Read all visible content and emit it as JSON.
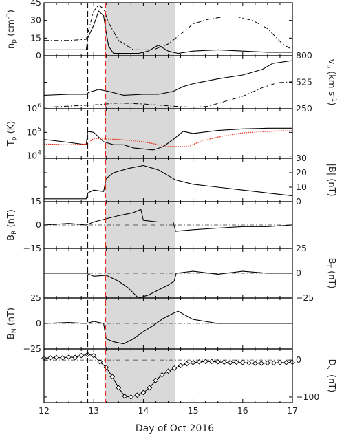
{
  "chart_data": {
    "type": "line",
    "x_axis": {
      "label": "Day of Oct 2016",
      "range": [
        12,
        17
      ],
      "ticks": [
        "12",
        "13",
        "14",
        "15",
        "16",
        "17"
      ]
    },
    "markers": {
      "shock_day": 12.88,
      "cme_start_day": 13.24
    },
    "shaded_interval": [
      13.24,
      14.64
    ],
    "panels": [
      {
        "id": "np",
        "label_left": "n",
        "label_left_sub": "p",
        "label_left_unit": " (cm",
        "label_left_sup": "-3",
        "label_left_end": ")",
        "label_right": "",
        "ylim": [
          0,
          45
        ],
        "yticks_left": [
          "45",
          "30",
          "15",
          "0"
        ],
        "yticks_right": [],
        "series": [
          {
            "style": "solid",
            "x": [
              12.0,
              12.5,
              12.85,
              12.88,
              13.0,
              13.1,
              13.2,
              13.25,
              13.3,
              13.4,
              13.6,
              13.9,
              14.1,
              14.3,
              14.5,
              14.7,
              15.0,
              15.5,
              16.0,
              16.5,
              17.0
            ],
            "y": [
              5,
              5,
              5,
              15,
              26,
              38,
              34,
              20,
              8,
              2,
              2,
              2,
              4,
              9,
              4,
              2,
              4,
              5,
              4,
              3,
              3
            ]
          },
          {
            "style": "dashdot",
            "x": [
              12.0,
              12.5,
              12.85,
              13.0,
              13.1,
              13.2,
              13.3,
              13.5,
              13.8,
              14.2,
              14.5,
              14.8,
              15.0,
              15.3,
              15.6,
              15.9,
              16.2,
              16.5,
              16.8,
              17.0
            ],
            "y": [
              13,
              13,
              14,
              38,
              43,
              40,
              28,
              13,
              5,
              5,
              10,
              20,
              27,
              31,
              33,
              33,
              30,
              23,
              10,
              5
            ]
          }
        ]
      },
      {
        "id": "vp",
        "label_left": "",
        "label_right": "v",
        "label_right_sub": "p",
        "label_right_unit": " (km s",
        "label_right_sup": "-1",
        "label_right_end": ")",
        "ylim": [
          250,
          800
        ],
        "yticks_left": [],
        "yticks_right": [
          "800",
          "525",
          "250"
        ],
        "series": [
          {
            "style": "solid",
            "x": [
              12.0,
              12.5,
              12.85,
              12.9,
              13.1,
              13.3,
              13.6,
              14.0,
              14.3,
              14.6,
              14.8,
              15.0,
              15.5,
              16.0,
              16.4,
              16.6,
              17.0
            ],
            "y": [
              390,
              400,
              400,
              420,
              450,
              430,
              390,
              400,
              400,
              430,
              480,
              510,
              560,
              600,
              660,
              720,
              750
            ]
          },
          {
            "style": "dashdot",
            "x": [
              12.0,
              13.0,
              13.5,
              14.0,
              14.5,
              15.0,
              15.3,
              15.6,
              16.0,
              16.4,
              16.7,
              17.0
            ],
            "y": [
              265,
              290,
              310,
              300,
              280,
              265,
              275,
              320,
              380,
              470,
              520,
              530
            ]
          }
        ]
      },
      {
        "id": "tp",
        "label_left": "T",
        "label_left_sub": "p",
        "label_left_unit": " (K)",
        "label_right": "",
        "log": true,
        "ylim": [
          8000,
          1000000
        ],
        "yticks_left": [
          "10^6",
          "10^5",
          "10^4"
        ],
        "yticks_right": [],
        "series": [
          {
            "style": "solid",
            "x": [
              12.0,
              12.4,
              12.85,
              12.88,
              13.0,
              13.2,
              13.4,
              13.6,
              13.8,
              14.0,
              14.2,
              14.4,
              14.6,
              14.8,
              15.0,
              15.5,
              16.0,
              16.5,
              17.0
            ],
            "y": [
              50000,
              40000,
              30000,
              110000,
              100000,
              40000,
              30000,
              30000,
              22000,
              20000,
              18000,
              25000,
              50000,
              110000,
              90000,
              120000,
              140000,
              150000,
              150000
            ]
          },
          {
            "style": "dotted",
            "color": "#e8301c",
            "x": [
              12.0,
              12.5,
              12.85,
              13.0,
              13.5,
              14.0,
              14.5,
              14.9,
              15.2,
              15.6,
              16.0,
              16.5,
              17.0
            ],
            "y": [
              32000,
              30000,
              32000,
              55000,
              50000,
              40000,
              25000,
              25000,
              45000,
              70000,
              95000,
              110000,
              120000
            ]
          }
        ]
      },
      {
        "id": "b",
        "label_left": "",
        "label_right": "|B| (nT)",
        "ylim": [
          0,
          30
        ],
        "yticks_left": [],
        "yticks_right": [
          "30",
          "20",
          "10",
          "0"
        ],
        "series": [
          {
            "style": "solid",
            "x": [
              12.0,
              12.5,
              12.85,
              12.88,
              13.0,
              13.2,
              13.25,
              13.4,
              13.7,
              14.0,
              14.3,
              14.5,
              14.65,
              15.0,
              15.5,
              16.0,
              16.5,
              17.0
            ],
            "y": [
              2,
              2,
              2,
              6,
              8,
              7,
              16,
              20,
              23,
              25,
              22,
              18,
              15,
              12,
              10,
              8,
              6,
              4
            ]
          }
        ]
      },
      {
        "id": "br",
        "label_left": "B",
        "label_left_sub": "R",
        "label_left_unit": " (nT)",
        "label_right": "",
        "ylim": [
          -15,
          15
        ],
        "yticks_left": [
          "15",
          "0",
          "-15"
        ],
        "yticks_right": [],
        "zero_line": true,
        "series": [
          {
            "style": "solid",
            "x": [
              12.0,
              12.5,
              12.85,
              13.0,
              13.25,
              13.5,
              13.8,
              13.95,
              14.0,
              14.3,
              14.6,
              14.65,
              15.0,
              15.5,
              16.0,
              16.5,
              17.0
            ],
            "y": [
              0,
              1,
              0,
              2,
              4,
              6,
              8,
              10,
              3,
              2,
              2,
              -4,
              -3,
              -2,
              -1,
              -1,
              0
            ]
          }
        ]
      },
      {
        "id": "bt",
        "label_left": "",
        "label_right": "B",
        "label_right_sub": "T",
        "label_right_unit": " (nT)",
        "ylim": [
          -25,
          25
        ],
        "yticks_left": [],
        "yticks_right": [
          "25",
          "0",
          "-25"
        ],
        "zero_line": true,
        "series": [
          {
            "style": "solid",
            "x": [
              12.0,
              12.5,
              12.85,
              13.0,
              13.25,
              13.5,
              13.7,
              13.9,
              14.1,
              14.3,
              14.5,
              14.62,
              14.66,
              15.0,
              15.5,
              16.0,
              16.5,
              17.0
            ],
            "y": [
              0,
              0,
              0,
              -3,
              -2,
              -8,
              -15,
              -25,
              -22,
              -17,
              -12,
              -8,
              0,
              2,
              -1,
              2,
              0,
              0
            ]
          }
        ]
      },
      {
        "id": "bn",
        "label_left": "B",
        "label_left_sub": "N",
        "label_left_unit": " (nT)",
        "label_right": "",
        "ylim": [
          -25,
          25
        ],
        "yticks_left": [
          "25",
          "0",
          "-25"
        ],
        "yticks_right": [],
        "zero_line": true,
        "series": [
          {
            "style": "solid",
            "x": [
              12.0,
              12.5,
              12.85,
              13.0,
              13.2,
              13.25,
              13.4,
              13.6,
              13.8,
              14.0,
              14.2,
              14.4,
              14.6,
              14.7,
              15.0,
              15.5,
              16.0,
              16.5,
              17.0
            ],
            "y": [
              0,
              1,
              0,
              2,
              0,
              -15,
              -18,
              -20,
              -15,
              -8,
              -2,
              5,
              10,
              12,
              4,
              0,
              0,
              0,
              0
            ]
          }
        ]
      },
      {
        "id": "dst",
        "label_left": "",
        "label_right": "D",
        "label_right_sub": "st",
        "label_right_unit": " (nT)",
        "ylim": [
          -115,
          30
        ],
        "yticks_left": [],
        "yticks_right": [
          "0",
          "-100"
        ],
        "zero_line": true,
        "series": [
          {
            "style": "solid",
            "markers": "diamond",
            "x": [
              12.0,
              12.125,
              12.25,
              12.375,
              12.5,
              12.625,
              12.75,
              12.875,
              13.0,
              13.125,
              13.25,
              13.375,
              13.5,
              13.625,
              13.75,
              13.875,
              14.0,
              14.125,
              14.25,
              14.375,
              14.5,
              14.625,
              14.75,
              14.875,
              15.0,
              15.125,
              15.25,
              15.375,
              15.5,
              15.625,
              15.75,
              15.875,
              16.0,
              16.125,
              16.25,
              16.375,
              16.5,
              16.625,
              16.75,
              16.875,
              17.0
            ],
            "y": [
              5,
              6,
              7,
              6,
              8,
              7,
              12,
              15,
              12,
              -5,
              -20,
              -45,
              -75,
              -98,
              -100,
              -95,
              -88,
              -75,
              -55,
              -40,
              -30,
              -22,
              -15,
              -10,
              -7,
              -5,
              -4,
              -4,
              -5,
              -6,
              -7,
              -6,
              -7,
              -8,
              -9,
              -9,
              -8,
              -8,
              -7,
              -7,
              -6
            ]
          }
        ]
      }
    ]
  }
}
